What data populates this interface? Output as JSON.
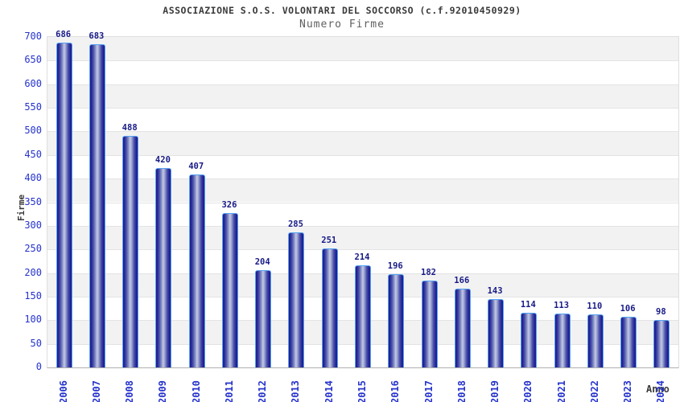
{
  "chart_data": {
    "type": "bar",
    "title": "ASSOCIAZIONE S.O.S. VOLONTARI DEL SOCCORSO (c.f.92010450929)",
    "subtitle": "Numero Firme",
    "xlabel": "Anno",
    "ylabel": "Firme",
    "categories": [
      "2006",
      "2007",
      "2008",
      "2009",
      "2010",
      "2011",
      "2012",
      "2013",
      "2014",
      "2015",
      "2016",
      "2017",
      "2018",
      "2019",
      "2020",
      "2021",
      "2022",
      "2023",
      "2024"
    ],
    "values": [
      686,
      683,
      488,
      420,
      407,
      326,
      204,
      285,
      251,
      214,
      196,
      182,
      166,
      143,
      114,
      113,
      110,
      106,
      98
    ],
    "ylim": [
      0,
      700
    ],
    "ytick_step": 50,
    "grid": true,
    "legend": "none",
    "band_color": "#f2f2f2",
    "gridline_color": "#e3e3e3",
    "bar_color_dark": "#1d1d87",
    "bar_color_light": "#c3c9e6",
    "bar_border_color": "#55a2f2",
    "tick_label_color": "#2533cc",
    "value_label_color": "#181a86",
    "title_color": "#3a3a3a",
    "subtitle_color": "#5f5f5f"
  }
}
